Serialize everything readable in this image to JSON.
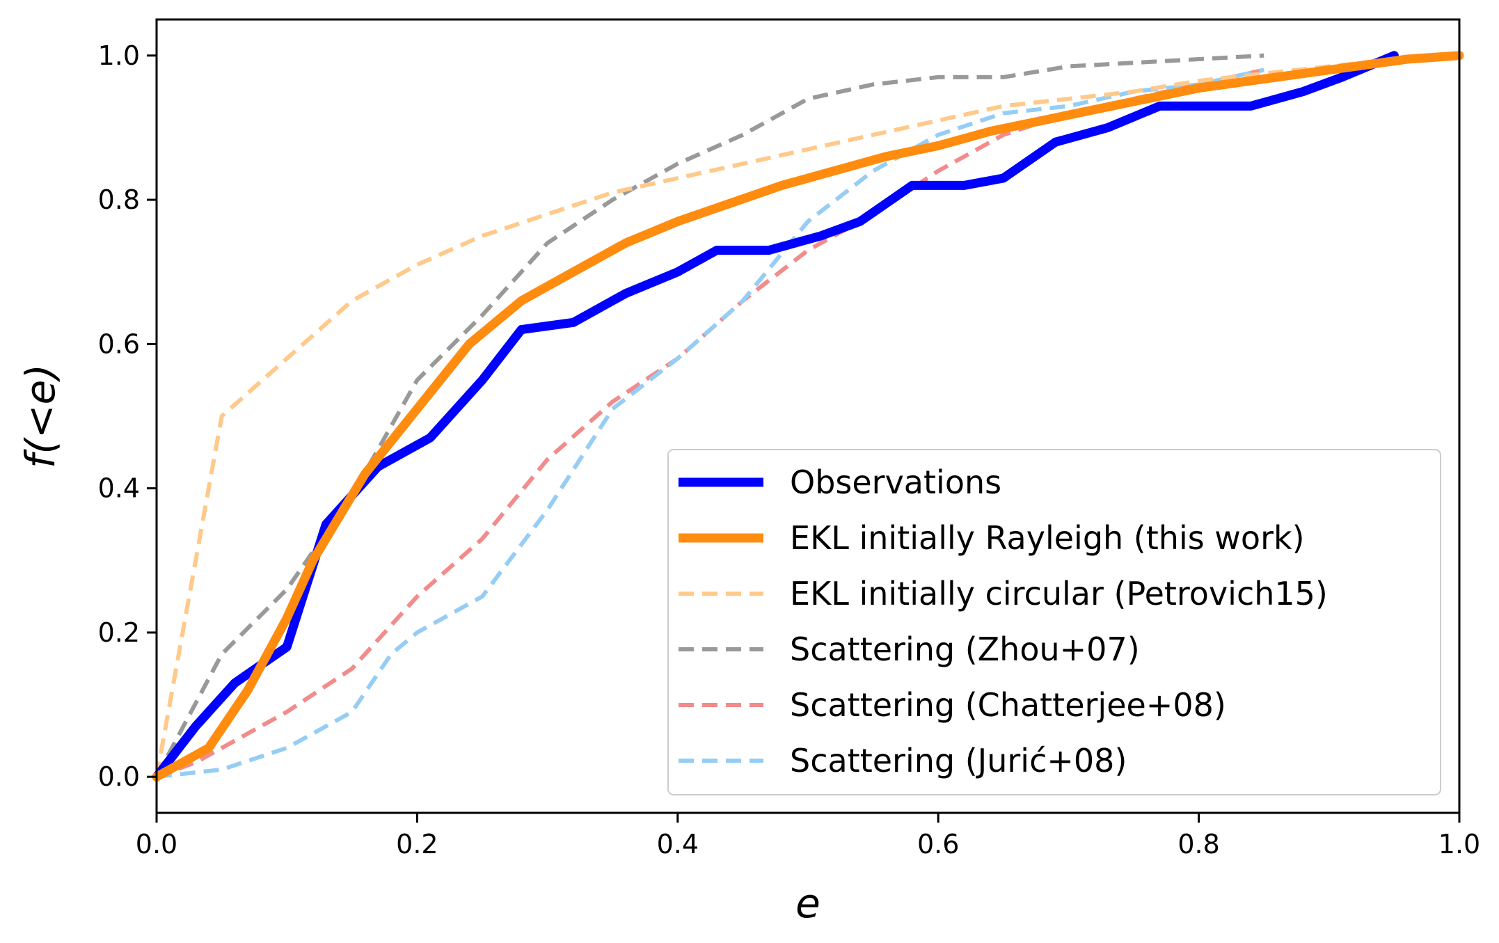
{
  "chart_data": {
    "type": "line",
    "title": "",
    "xlabel": "e",
    "ylabel": "f(<e)",
    "xlim": [
      0.0,
      1.0
    ],
    "ylim": [
      -0.05,
      1.05
    ],
    "xticks": [
      "0.0",
      "0.2",
      "0.4",
      "0.6",
      "0.8",
      "1.0"
    ],
    "yticks": [
      "0.0",
      "0.2",
      "0.4",
      "0.6",
      "0.8",
      "1.0"
    ],
    "grid": false,
    "legend_position": "lower-right",
    "series": [
      {
        "name": "Scattering (Zhou+07)",
        "color": "#999999",
        "style": "dashed",
        "alpha": 1.0,
        "width": "thin",
        "x": [
          0.0,
          0.05,
          0.1,
          0.15,
          0.2,
          0.25,
          0.3,
          0.35,
          0.4,
          0.45,
          0.5,
          0.55,
          0.6,
          0.65,
          0.7,
          0.75,
          0.8,
          0.85
        ],
        "y": [
          0.0,
          0.17,
          0.26,
          0.39,
          0.55,
          0.64,
          0.74,
          0.8,
          0.85,
          0.89,
          0.94,
          0.96,
          0.97,
          0.97,
          0.985,
          0.99,
          0.995,
          1.0
        ]
      },
      {
        "name": "Scattering (Chatterjee+08)",
        "color": "#f28b8b",
        "style": "dashed",
        "alpha": 1.0,
        "width": "thin",
        "x": [
          0.0,
          0.03,
          0.07,
          0.1,
          0.15,
          0.2,
          0.25,
          0.3,
          0.35,
          0.4,
          0.45,
          0.5,
          0.55,
          0.6,
          0.65,
          0.7,
          0.75,
          0.8,
          0.85
        ],
        "y": [
          0.0,
          0.02,
          0.06,
          0.09,
          0.15,
          0.25,
          0.33,
          0.44,
          0.52,
          0.58,
          0.66,
          0.73,
          0.78,
          0.84,
          0.89,
          0.92,
          0.94,
          0.96,
          0.98
        ]
      },
      {
        "name": "Scattering (Jurić+08)",
        "color": "#96cdf5",
        "style": "dashed",
        "alpha": 1.0,
        "width": "thin",
        "x": [
          0.0,
          0.05,
          0.1,
          0.15,
          0.18,
          0.2,
          0.25,
          0.3,
          0.35,
          0.4,
          0.45,
          0.5,
          0.55,
          0.6,
          0.65,
          0.7,
          0.75,
          0.8,
          0.85
        ],
        "y": [
          0.0,
          0.01,
          0.04,
          0.09,
          0.17,
          0.2,
          0.25,
          0.37,
          0.51,
          0.58,
          0.66,
          0.77,
          0.84,
          0.89,
          0.92,
          0.93,
          0.95,
          0.96,
          0.98
        ]
      },
      {
        "name": "EKL initially circular (Petrovich15)",
        "color": "#ffc98a",
        "style": "dashed",
        "alpha": 1.0,
        "width": "thin",
        "x": [
          0.0,
          0.05,
          0.1,
          0.15,
          0.2,
          0.25,
          0.3,
          0.35,
          0.4,
          0.45,
          0.5,
          0.55,
          0.6,
          0.65,
          0.7,
          0.75,
          0.8,
          0.85,
          0.9,
          0.95,
          1.0
        ],
        "y": [
          0.0,
          0.5,
          0.58,
          0.66,
          0.71,
          0.75,
          0.78,
          0.81,
          0.83,
          0.85,
          0.87,
          0.89,
          0.91,
          0.93,
          0.94,
          0.95,
          0.965,
          0.975,
          0.985,
          0.995,
          1.0
        ]
      },
      {
        "name": "Observations",
        "color": "#0000ff",
        "style": "solid",
        "alpha": 1.0,
        "width": "thick",
        "x": [
          0.0,
          0.03,
          0.06,
          0.1,
          0.13,
          0.17,
          0.21,
          0.25,
          0.28,
          0.32,
          0.36,
          0.4,
          0.43,
          0.47,
          0.51,
          0.54,
          0.58,
          0.62,
          0.65,
          0.69,
          0.73,
          0.77,
          0.8,
          0.84,
          0.88,
          0.91,
          0.95
        ],
        "y": [
          0.0,
          0.07,
          0.13,
          0.18,
          0.35,
          0.43,
          0.47,
          0.55,
          0.62,
          0.63,
          0.67,
          0.7,
          0.73,
          0.73,
          0.75,
          0.77,
          0.82,
          0.82,
          0.83,
          0.88,
          0.9,
          0.93,
          0.93,
          0.93,
          0.95,
          0.97,
          1.0
        ]
      },
      {
        "name": "EKL initially Rayleigh (this work)",
        "color": "#ff8c0e",
        "style": "solid",
        "alpha": 1.0,
        "width": "thick",
        "x": [
          0.0,
          0.02,
          0.04,
          0.07,
          0.1,
          0.12,
          0.16,
          0.2,
          0.24,
          0.28,
          0.32,
          0.36,
          0.4,
          0.44,
          0.48,
          0.52,
          0.56,
          0.6,
          0.64,
          0.68,
          0.72,
          0.76,
          0.8,
          0.84,
          0.88,
          0.92,
          0.96,
          1.0
        ],
        "y": [
          0.0,
          0.02,
          0.04,
          0.12,
          0.22,
          0.3,
          0.42,
          0.51,
          0.6,
          0.66,
          0.7,
          0.74,
          0.77,
          0.795,
          0.82,
          0.84,
          0.86,
          0.875,
          0.895,
          0.91,
          0.925,
          0.94,
          0.955,
          0.965,
          0.975,
          0.985,
          0.995,
          1.0
        ]
      }
    ],
    "legend_order": [
      "Observations",
      "EKL initially Rayleigh (this work)",
      "EKL initially circular (Petrovich15)",
      "Scattering (Zhou+07)",
      "Scattering (Chatterjee+08)",
      "Scattering (Jurić+08)"
    ]
  }
}
